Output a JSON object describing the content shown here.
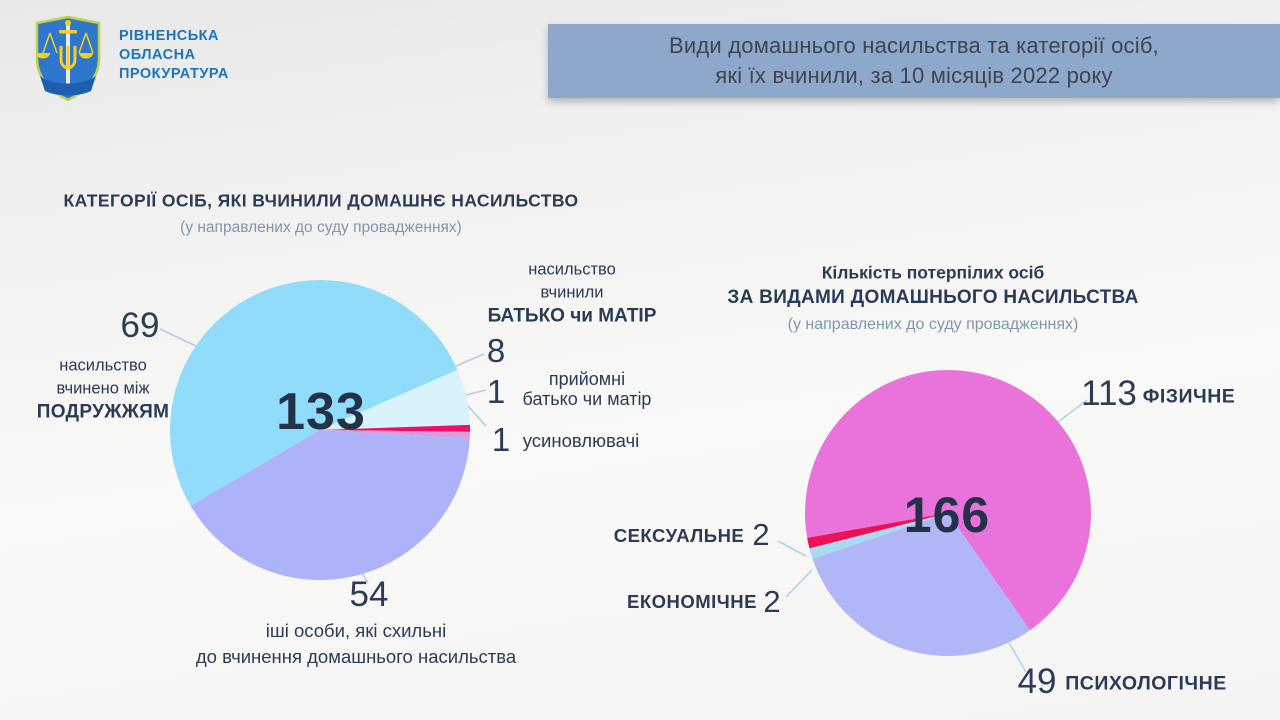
{
  "logo": {
    "org_name_lines": [
      "РІВНЕНСЬКА",
      "ОБЛАСНА",
      "ПРОКУРАТУРА"
    ],
    "text_color": "#1b74bc"
  },
  "banner": {
    "line1": "Види домашнього насильства та категорії осіб,",
    "line2": "які їх вчинили, за 10 місяців 2022 року",
    "bg_color": "#8ea8cb",
    "text_color": "#3e4450"
  },
  "chart_data": [
    {
      "type": "pie",
      "title": "КАТЕГОРІЇ ОСІБ, ЯКІ ВЧИНИЛИ ДОМАШНЄ НАСИЛЬСТВО",
      "subtitle": "(у направлених до суду провадженнях)",
      "total": 133,
      "start_angle_deg": -120.4,
      "legend_position": "around",
      "slices": [
        {
          "label": "насильство вчинено між ПОДРУЖЖЯМ",
          "value": 69,
          "color": "#91dbfb"
        },
        {
          "label": "насильство вчинили БАТЬКО чи МАТІР",
          "value": 8,
          "color": "#d8f3fb"
        },
        {
          "label": "прийомні батько чи матір",
          "value": 1,
          "color": "#f00f65"
        },
        {
          "label": "усиновлювачі",
          "value": 1,
          "color": "#d2a0e1"
        },
        {
          "label": "іші особи, які схильні до вчинення домашнього насильства",
          "value": 54,
          "color": "#aeb2f8"
        }
      ],
      "annotations": {
        "spouses_lines": [
          "насильство",
          "вчинено між",
          "ПОДРУЖЖЯМ"
        ],
        "parents_lines": [
          "насильство",
          "вчинили",
          "БАТЬКО чи МАТІР"
        ],
        "foster_lines": [
          "прийомні",
          "батько чи матір"
        ],
        "others_lines": [
          "іші особи, які схильні",
          "до вчинення домашнього насильства"
        ]
      }
    },
    {
      "type": "pie",
      "title": "Кількість потерпілих осіб ЗА ВИДАМИ ДОМАШНЬОГО НАСИЛЬСТВА",
      "title_lines": [
        "Кількість потерпілих осіб",
        "ЗА ВИДАМИ ДОМАШНЬОГО НАСИЛЬСТВА"
      ],
      "subtitle": "(у направлених до суду провадженнях)",
      "total": 166,
      "start_angle_deg": -100,
      "legend_position": "around",
      "slices": [
        {
          "label": "ФІЗИЧНЕ",
          "value": 113,
          "color": "#e973da"
        },
        {
          "label": "ПСИХОЛОГІЧНЕ",
          "value": 49,
          "color": "#b1b6f6"
        },
        {
          "label": "ЕКОНОМІЧНЕ",
          "value": 2,
          "color": "#a6dbf2"
        },
        {
          "label": "СЕКСУАЛЬНЕ",
          "value": 2,
          "color": "#ed1156"
        }
      ]
    }
  ],
  "colors": {
    "label_text": "#2c3c56",
    "total_text": "#243248",
    "subtitle_text": "#8196ae",
    "leader_left": "#b9c9e6",
    "leader_right": "#a9d6ee"
  }
}
